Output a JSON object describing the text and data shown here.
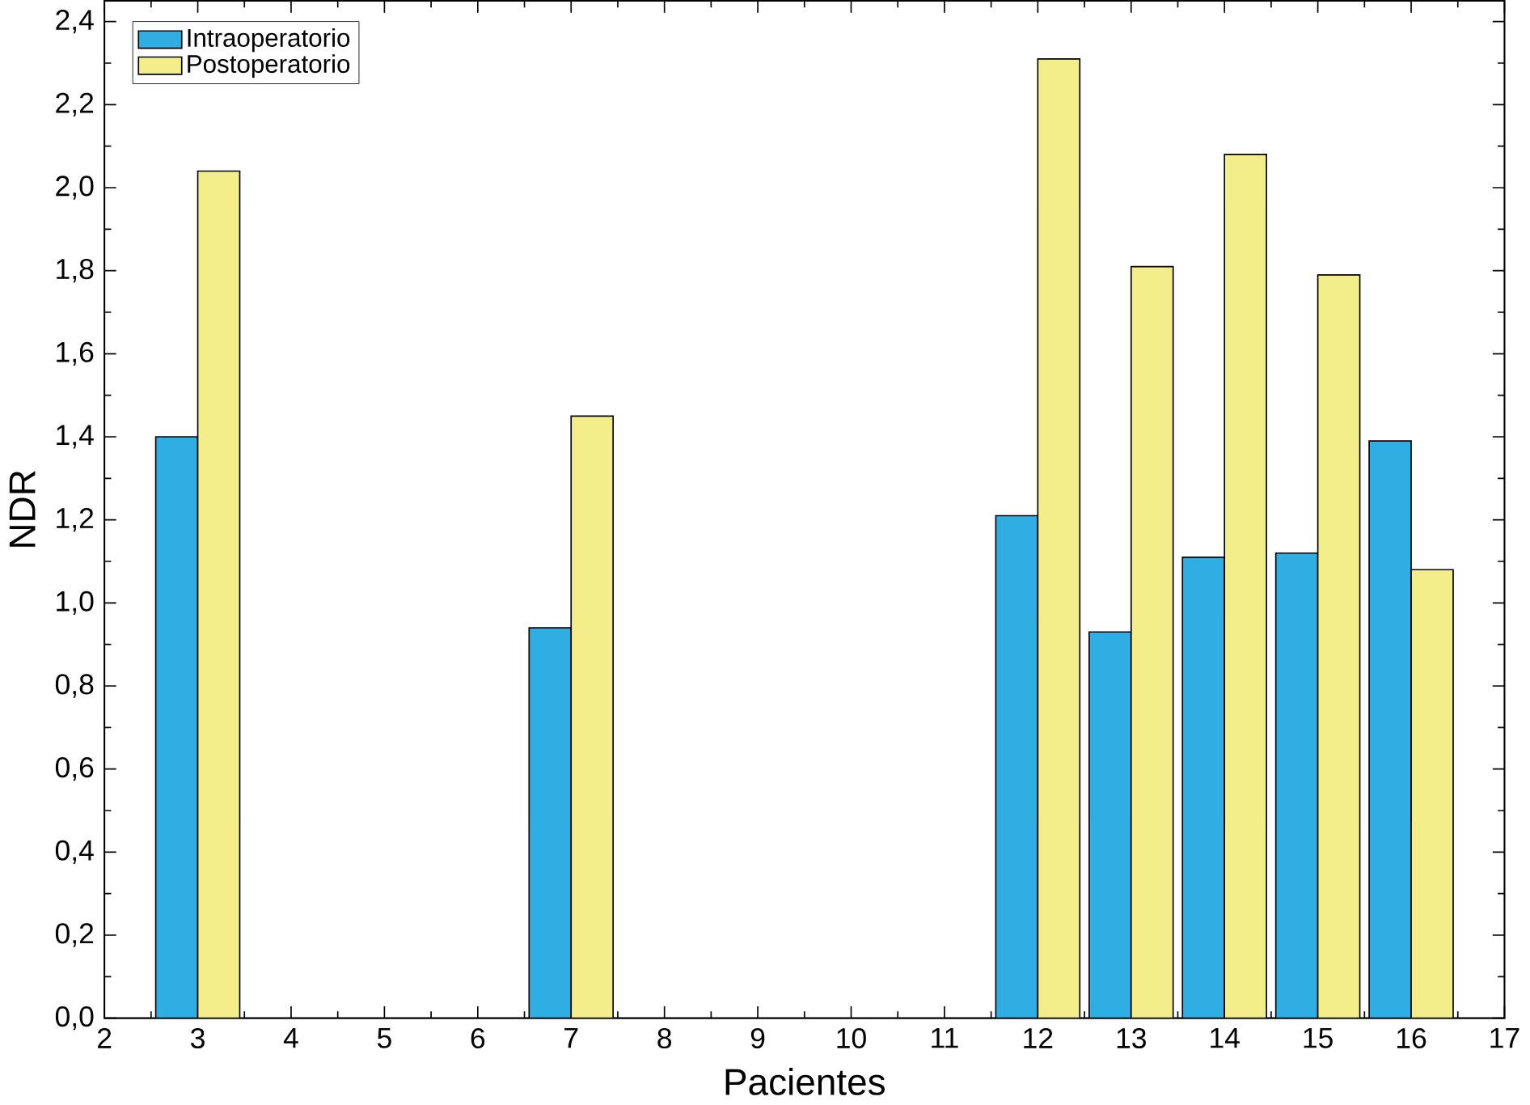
{
  "chart_data": {
    "type": "bar",
    "xlabel": "Pacientes",
    "ylabel": "NDR",
    "x": [
      3,
      7,
      12,
      13,
      14,
      15,
      16
    ],
    "series": [
      {
        "name": "Intraoperatorio",
        "color": "#2eaee3",
        "values": [
          1.4,
          0.94,
          1.21,
          0.93,
          1.11,
          1.12,
          1.39
        ]
      },
      {
        "name": "Postoperatorio",
        "color": "#f3ee8a",
        "values": [
          2.04,
          1.45,
          2.31,
          1.81,
          2.08,
          1.79,
          1.08
        ]
      }
    ],
    "xlim": [
      2,
      17
    ],
    "xticks": [
      2,
      3,
      4,
      5,
      6,
      7,
      8,
      9,
      10,
      11,
      12,
      13,
      14,
      15,
      16,
      17
    ],
    "ylim": [
      0,
      2.45
    ],
    "yticks": [
      {
        "value": 0,
        "label": "0,0"
      },
      {
        "value": 0.2,
        "label": "0,2"
      },
      {
        "value": 0.4,
        "label": "0,4"
      },
      {
        "value": 0.6,
        "label": "0,6"
      },
      {
        "value": 0.8,
        "label": "0,8"
      },
      {
        "value": 1.0,
        "label": "1,0"
      },
      {
        "value": 1.2,
        "label": "1,2"
      },
      {
        "value": 1.4,
        "label": "1,4"
      },
      {
        "value": 1.6,
        "label": "1,6"
      },
      {
        "value": 1.8,
        "label": "1,8"
      },
      {
        "value": 2.0,
        "label": "2,0"
      },
      {
        "value": 2.2,
        "label": "2,2"
      },
      {
        "value": 2.4,
        "label": "2,4"
      }
    ],
    "grid": false,
    "legend": "top left"
  }
}
